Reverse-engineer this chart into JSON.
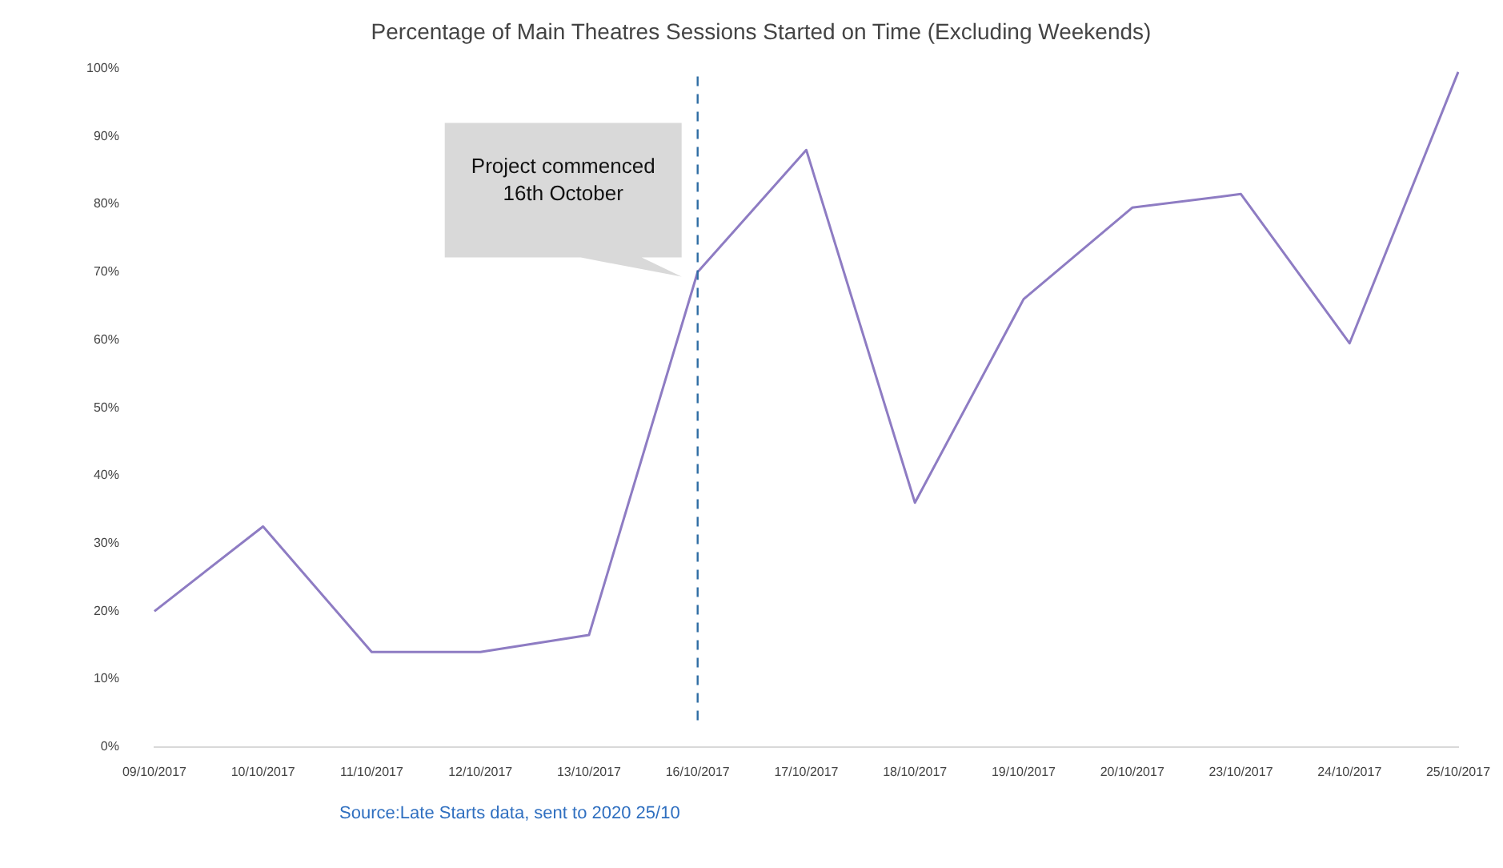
{
  "chart_data": {
    "type": "line",
    "title": "Percentage of Main Theatres Sessions Started on Time (Excluding Weekends)",
    "categories": [
      "09/10/2017",
      "10/10/2017",
      "11/10/2017",
      "12/10/2017",
      "13/10/2017",
      "16/10/2017",
      "17/10/2017",
      "18/10/2017",
      "19/10/2017",
      "20/10/2017",
      "23/10/2017",
      "24/10/2017",
      "25/10/2017"
    ],
    "series": [
      {
        "color": "#8e7cc3",
        "values": [
          20,
          32.5,
          14,
          14,
          16.5,
          70,
          88,
          36,
          66,
          79.5,
          81.5,
          59.5,
          99.5
        ]
      }
    ],
    "ylim": [
      0,
      100
    ],
    "yticks": [
      {
        "value": 0,
        "label": "0%"
      },
      {
        "value": 10,
        "label": "10%"
      },
      {
        "value": 20,
        "label": "20%"
      },
      {
        "value": 30,
        "label": "30%"
      },
      {
        "value": 40,
        "label": "40%"
      },
      {
        "value": 50,
        "label": "50%"
      },
      {
        "value": 60,
        "label": "60%"
      },
      {
        "value": 70,
        "label": "70%"
      },
      {
        "value": 80,
        "label": "80%"
      },
      {
        "value": 90,
        "label": "90%"
      },
      {
        "value": 100,
        "label": "100%"
      }
    ],
    "ref_lines": [
      {
        "axis": "x",
        "value": "16/10/2017",
        "color": "#2e6da4",
        "line_style": "dashed",
        "label": "Project commenced  16th October"
      }
    ],
    "annotations": [
      "Source:Late Starts data, sent to 2020 25/10"
    ],
    "grid": false,
    "legend": false,
    "marker": "none",
    "line_style": "solid"
  }
}
